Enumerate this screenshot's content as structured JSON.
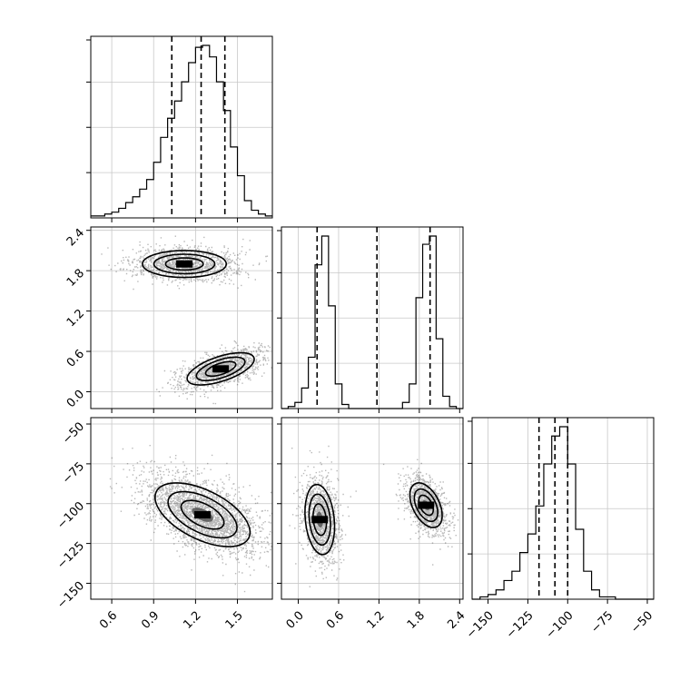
{
  "chart_data": {
    "type": "corner",
    "parameters": [
      {
        "name": "",
        "range": [
          0.45,
          1.75
        ],
        "ticks": [
          0.6,
          0.9,
          1.2,
          1.5
        ],
        "tick_labels": [
          "0.6",
          "0.9",
          "1.2",
          "1.5"
        ]
      },
      {
        "name": "",
        "range": [
          -0.25,
          2.45
        ],
        "ticks": [
          0.0,
          0.6,
          1.2,
          1.8,
          2.4
        ],
        "tick_labels": [
          "0.0",
          "0.6",
          "1.2",
          "1.8",
          "2.4"
        ]
      },
      {
        "name": "",
        "range": [
          -160,
          -46
        ],
        "ticks": [
          -150,
          -125,
          -100,
          -75,
          -50
        ],
        "tick_labels": [
          "−150",
          "−125",
          "−100",
          "−75",
          "−50"
        ]
      }
    ],
    "marginals": [
      {
        "param": 0,
        "bin_edges": [
          0.45,
          0.5,
          0.55,
          0.6,
          0.65,
          0.7,
          0.75,
          0.8,
          0.85,
          0.9,
          0.95,
          1.0,
          1.05,
          1.1,
          1.15,
          1.2,
          1.25,
          1.3,
          1.35,
          1.4,
          1.45,
          1.5,
          1.55,
          1.6,
          1.65,
          1.7,
          1.75
        ],
        "counts": [
          1,
          1,
          2,
          3,
          5,
          8,
          11,
          15,
          20,
          29,
          42,
          52,
          61,
          71,
          81,
          89,
          90,
          84,
          71,
          56,
          37,
          22,
          9,
          4,
          2,
          1
        ],
        "quantiles": [
          1.03,
          1.24,
          1.41
        ]
      },
      {
        "param": 1,
        "bin_edges": [
          -0.25,
          -0.15,
          -0.05,
          0.05,
          0.15,
          0.25,
          0.35,
          0.45,
          0.55,
          0.65,
          0.75,
          0.85,
          0.95,
          1.05,
          1.15,
          1.25,
          1.35,
          1.45,
          1.55,
          1.65,
          1.75,
          1.85,
          1.95,
          2.05,
          2.15,
          2.25,
          2.35,
          2.45
        ],
        "counts": [
          0,
          1,
          3,
          10,
          25,
          70,
          84,
          50,
          12,
          2,
          0,
          0,
          0,
          0,
          0,
          0,
          0,
          0,
          3,
          12,
          54,
          80,
          84,
          34,
          6,
          1,
          0
        ],
        "quantiles": [
          0.28,
          1.17,
          1.96
        ]
      },
      {
        "param": 2,
        "bin_edges": [
          -160,
          -155,
          -150,
          -145,
          -140,
          -135,
          -130,
          -125,
          -120,
          -115,
          -110,
          -105,
          -100,
          -95,
          -90,
          -85,
          -80,
          -75,
          -70,
          -65,
          -60,
          -55,
          -50,
          -46
        ],
        "counts": [
          0,
          1,
          2,
          4,
          8,
          12,
          20,
          28,
          40,
          58,
          70,
          74,
          58,
          30,
          12,
          4,
          1,
          1,
          0,
          0,
          0,
          0,
          0
        ],
        "quantiles": [
          -118,
          -108,
          -100
        ]
      }
    ],
    "joint": [
      {
        "x": 0,
        "y": 1,
        "modes": [
          {
            "mean": [
              1.12,
              1.9
            ],
            "sd": [
              0.15,
              0.1
            ],
            "rho": 0.0,
            "weight": 0.5
          },
          {
            "mean": [
              1.38,
              0.34
            ],
            "sd": [
              0.12,
              0.12
            ],
            "rho": 0.6,
            "weight": 0.5
          }
        ]
      },
      {
        "x": 0,
        "y": 2,
        "modes": [
          {
            "mean": [
              1.25,
              -107
            ],
            "sd": [
              0.17,
              10
            ],
            "rho": -0.55,
            "weight": 1.0
          }
        ]
      },
      {
        "x": 1,
        "y": 2,
        "modes": [
          {
            "mean": [
              0.32,
              -110
            ],
            "sd": [
              0.11,
              11
            ],
            "rho": -0.2,
            "weight": 0.5
          },
          {
            "mean": [
              1.9,
              -101
            ],
            "sd": [
              0.12,
              7
            ],
            "rho": -0.45,
            "weight": 0.5
          }
        ]
      }
    ],
    "grid": true
  },
  "style": {
    "line_color": "#000000",
    "grid_color": "#c8c8c8",
    "sample_color": "#000000"
  }
}
